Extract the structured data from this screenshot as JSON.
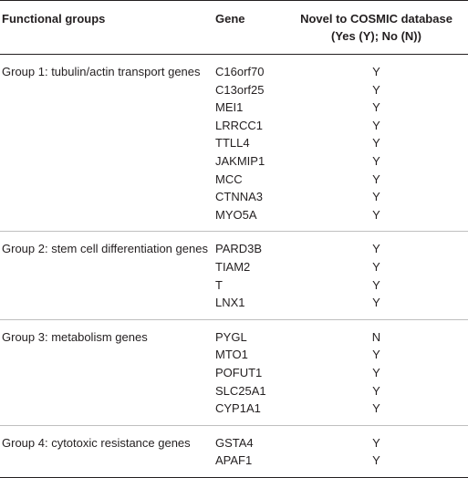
{
  "headers": {
    "group": "Functional groups",
    "gene": "Gene",
    "novel": "Novel to COSMIC database (Yes (Y); No (N))"
  },
  "groups": [
    {
      "name": "Group 1: tubulin/actin transport genes",
      "rows": [
        {
          "gene": "C16orf70",
          "novel": "Y"
        },
        {
          "gene": "C13orf25",
          "novel": "Y"
        },
        {
          "gene": "MEI1",
          "novel": "Y"
        },
        {
          "gene": "LRRCC1",
          "novel": "Y"
        },
        {
          "gene": "TTLL4",
          "novel": "Y"
        },
        {
          "gene": "JAKMIP1",
          "novel": "Y"
        },
        {
          "gene": "MCC",
          "novel": "Y"
        },
        {
          "gene": "CTNNA3",
          "novel": "Y"
        },
        {
          "gene": "MYO5A",
          "novel": "Y"
        }
      ]
    },
    {
      "name": "Group 2: stem cell differentiation genes",
      "rows": [
        {
          "gene": "PARD3B",
          "novel": "Y"
        },
        {
          "gene": "TIAM2",
          "novel": "Y"
        },
        {
          "gene": "T",
          "novel": "Y"
        },
        {
          "gene": "LNX1",
          "novel": "Y"
        }
      ]
    },
    {
      "name": "Group 3: metabolism genes",
      "rows": [
        {
          "gene": "PYGL",
          "novel": "N"
        },
        {
          "gene": "MTO1",
          "novel": "Y"
        },
        {
          "gene": "POFUT1",
          "novel": "Y"
        },
        {
          "gene": "SLC25A1",
          "novel": "Y"
        },
        {
          "gene": "CYP1A1",
          "novel": "Y"
        }
      ]
    },
    {
      "name": "Group 4: cytotoxic resistance genes",
      "rows": [
        {
          "gene": "GSTA4",
          "novel": "Y"
        },
        {
          "gene": "APAF1",
          "novel": "Y"
        }
      ]
    }
  ]
}
